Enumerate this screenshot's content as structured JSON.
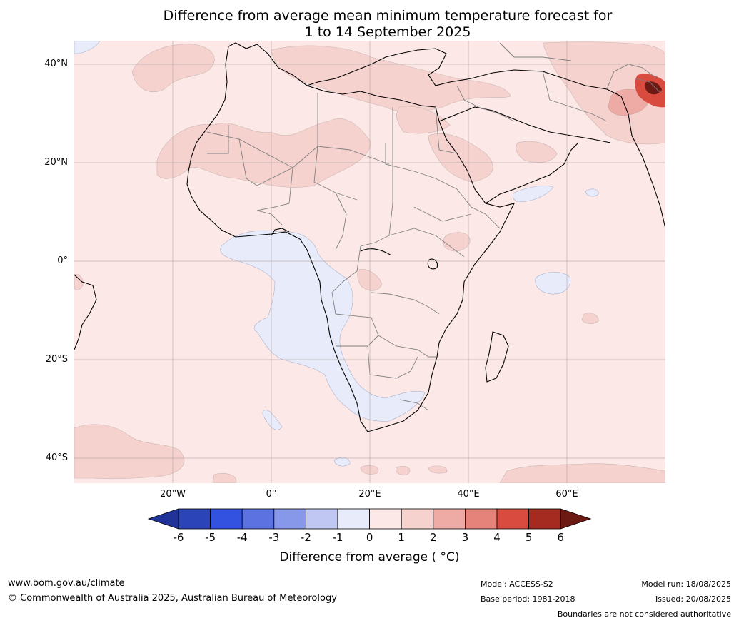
{
  "title": {
    "line1": "Difference from average mean minimum temperature forecast for",
    "line2": "1 to 14 September 2025"
  },
  "axes": {
    "lat_labels": [
      "40°N",
      "20°N",
      "0°",
      "20°S",
      "40°S"
    ],
    "lon_labels": [
      "20°W",
      "0°",
      "20°E",
      "40°E",
      "60°E"
    ]
  },
  "colorbar": {
    "title": "Difference from average ( °C)",
    "ticks": [
      "-6",
      "-5",
      "-4",
      "-3",
      "-2",
      "-1",
      "0",
      "1",
      "2",
      "3",
      "4",
      "5",
      "6"
    ],
    "colors": [
      "#1f3399",
      "#2b44b8",
      "#3452e0",
      "#5b72e0",
      "#8797ea",
      "#bfc7f2",
      "#e8ecfa",
      "#fce9e7",
      "#f6d2cf",
      "#eeaba5",
      "#e5827a",
      "#d94b3f",
      "#a52a20",
      "#6e1a14"
    ]
  },
  "map_colors": {
    "base": "#fce9e7",
    "warm1": "#f6d2cf",
    "warm2": "#eeaba5",
    "warm3": "#d94b3f",
    "warm4": "#6e1a14",
    "cool": "#e8ecfa"
  },
  "footer": {
    "website": "www.bom.gov.au/climate",
    "copyright": "© Commonwealth of Australia 2025, Australian Bureau of Meteorology",
    "model": "Model: ACCESS-S2",
    "base_period": "Base period: 1981-2018",
    "model_run": "Model run: 18/08/2025",
    "issued": "Issued: 20/08/2025",
    "disclaimer": "Boundaries are not considered authoritative"
  }
}
